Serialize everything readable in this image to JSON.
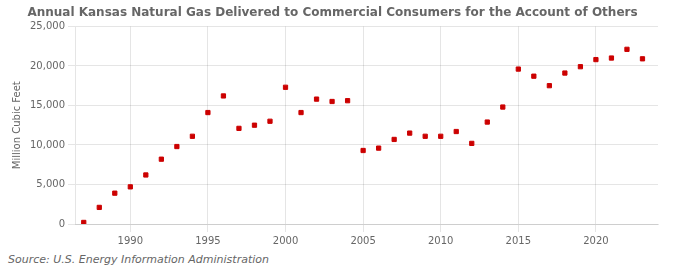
{
  "chart_data": {
    "type": "scatter",
    "title": "Annual Kansas Natural Gas Delivered to Commercial Consumers for the Account of Others",
    "ylabel": "Million Cubic Feet",
    "annotations": [
      "Source: U.S. Energy Information Administration"
    ],
    "x": [
      1987,
      1988,
      1989,
      1990,
      1991,
      1992,
      1993,
      1994,
      1995,
      1996,
      1997,
      1998,
      1999,
      2000,
      2001,
      2002,
      2003,
      2004,
      2005,
      2006,
      2007,
      2008,
      2009,
      2010,
      2011,
      2012,
      2013,
      2014,
      2015,
      2016,
      2017,
      2018,
      2019,
      2020,
      2021,
      2022,
      2023
    ],
    "values": [
      200,
      2100,
      3900,
      4700,
      6200,
      8200,
      9800,
      11100,
      14100,
      16200,
      12100,
      12500,
      13000,
      17300,
      14100,
      15800,
      15500,
      15600,
      9300,
      9600,
      10700,
      11500,
      11100,
      11100,
      11700,
      10200,
      12900,
      14800,
      19600,
      18700,
      17500,
      19100,
      19900,
      20800,
      21000,
      22100,
      20900
    ],
    "color": "#cc0000",
    "marker": "square",
    "xlim": [
      1986.5,
      2024
    ],
    "xticks": [
      1990,
      1995,
      2000,
      2005,
      2010,
      2015,
      2020
    ],
    "ylim": [
      0,
      25000
    ],
    "yticks": [
      0,
      {
        "value": 5000,
        "label": "5,000"
      },
      {
        "value": 10000,
        "label": "10,000"
      },
      {
        "value": 15000,
        "label": "15,000"
      },
      {
        "value": 20000,
        "label": "20,000"
      },
      {
        "value": 25000,
        "label": "25,000"
      }
    ],
    "grid": true
  }
}
